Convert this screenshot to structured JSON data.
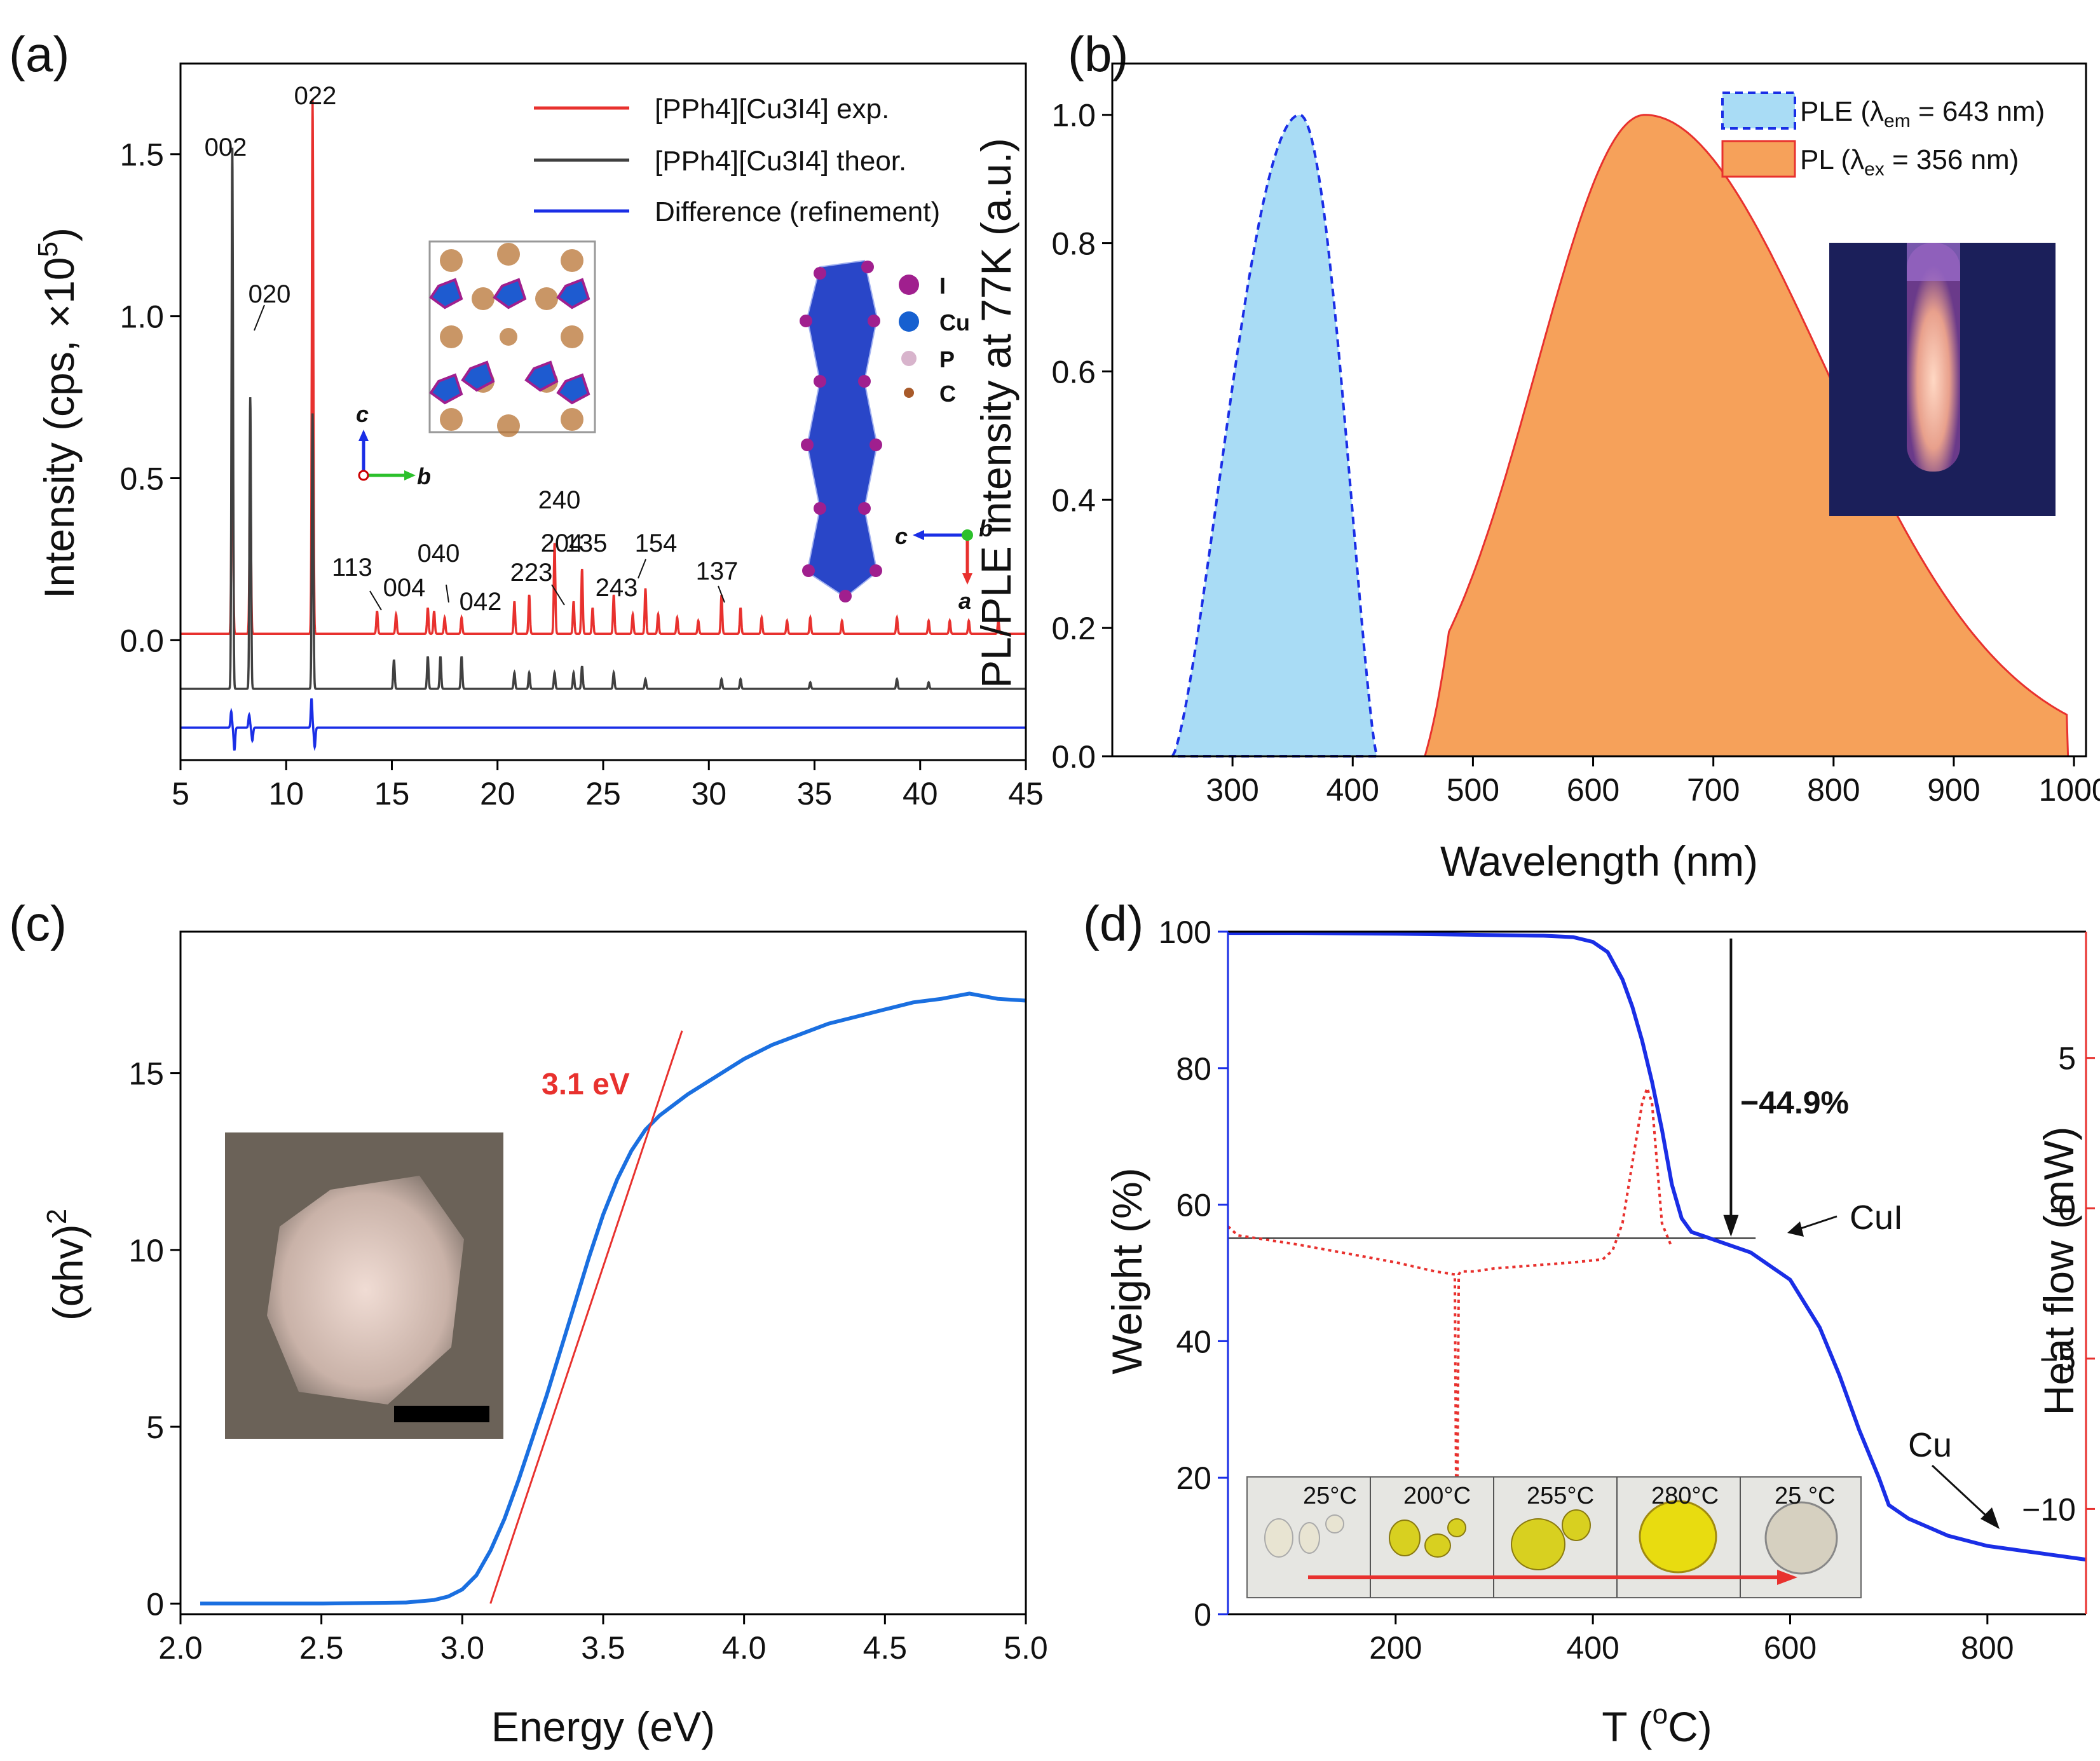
{
  "chart_data": [
    {
      "id": "a",
      "panel_label": "(a)",
      "type": "line",
      "xlabel": "",
      "ylabel": "Intensity (cps, ×10",
      "ylabel_sup": "5",
      "ylabel_tail": ")",
      "xlim": [
        5,
        45
      ],
      "ylim": [
        -0.37,
        1.78
      ],
      "xticks": [
        "5",
        "10",
        "15",
        "20",
        "25",
        "30",
        "35",
        "40",
        "45"
      ],
      "yticks": [
        "0.0",
        "0.5",
        "1.0",
        "1.5"
      ],
      "legend": [
        {
          "name": "[PPh4][Cu3I4] exp.",
          "color": "#e8312e"
        },
        {
          "name": "[PPh4][Cu3I4] theor.",
          "color": "#404040"
        },
        {
          "name": "Difference (refinement)",
          "color": "#1a2ee6"
        }
      ],
      "series": [
        {
          "name": "exp",
          "baseline": 0.02,
          "color": "#e8312e",
          "peaks": [
            [
              7.45,
              0.88
            ],
            [
              8.3,
              0.51
            ],
            [
              11.25,
              1.65
            ],
            [
              14.3,
              0.07
            ],
            [
              15.2,
              0.06
            ],
            [
              16.7,
              0.08
            ],
            [
              17.0,
              0.07
            ],
            [
              17.5,
              0.05
            ],
            [
              18.3,
              0.05
            ],
            [
              20.8,
              0.1
            ],
            [
              21.5,
              0.12
            ],
            [
              22.7,
              0.28
            ],
            [
              23.6,
              0.1
            ],
            [
              24.0,
              0.2
            ],
            [
              24.5,
              0.08
            ],
            [
              25.5,
              0.12
            ],
            [
              26.4,
              0.06
            ],
            [
              27.0,
              0.14
            ],
            [
              27.6,
              0.06
            ],
            [
              28.5,
              0.05
            ],
            [
              29.5,
              0.04
            ],
            [
              30.6,
              0.12
            ],
            [
              31.5,
              0.08
            ],
            [
              32.5,
              0.05
            ],
            [
              33.7,
              0.04
            ],
            [
              34.8,
              0.05
            ],
            [
              36.3,
              0.04
            ],
            [
              38.9,
              0.05
            ],
            [
              40.4,
              0.04
            ],
            [
              41.4,
              0.04
            ],
            [
              42.3,
              0.04
            ],
            [
              43.7,
              0.04
            ]
          ]
        },
        {
          "name": "theor",
          "baseline": -0.15,
          "color": "#404040",
          "peaks": [
            [
              7.45,
              1.67
            ],
            [
              8.3,
              0.9
            ],
            [
              11.25,
              0.85
            ],
            [
              15.1,
              0.09
            ],
            [
              16.7,
              0.1
            ],
            [
              17.3,
              0.1
            ],
            [
              18.3,
              0.1
            ],
            [
              20.8,
              0.05
            ],
            [
              21.5,
              0.05
            ],
            [
              22.7,
              0.05
            ],
            [
              23.6,
              0.05
            ],
            [
              24.0,
              0.07
            ],
            [
              25.5,
              0.05
            ],
            [
              27.0,
              0.03
            ],
            [
              30.6,
              0.03
            ],
            [
              31.5,
              0.03
            ],
            [
              34.8,
              0.02
            ],
            [
              38.9,
              0.03
            ],
            [
              40.4,
              0.02
            ]
          ]
        },
        {
          "name": "diff",
          "baseline": -0.27,
          "color": "#1a2ee6",
          "peaks": [
            [
              7.4,
              0.05
            ],
            [
              7.55,
              -0.07
            ],
            [
              8.25,
              0.04
            ],
            [
              8.4,
              -0.04
            ],
            [
              11.2,
              0.09
            ],
            [
              11.35,
              -0.06
            ]
          ]
        }
      ],
      "annotations": [
        "002",
        "020",
        "022",
        "113",
        "004",
        "040",
        "042",
        "223",
        "204",
        "240",
        "135",
        "243",
        "154",
        "137"
      ],
      "axis_labels_inset": {
        "c": "c",
        "b": "b",
        "a": "a",
        "c2": "c",
        "b2": "b"
      },
      "atom_legend": [
        {
          "label": "I",
          "color": "#a01f8e"
        },
        {
          "label": "Cu",
          "color": "#1660d0"
        },
        {
          "label": "P",
          "color": "#d8b4cc"
        },
        {
          "label": "C",
          "color": "#a85a2a"
        }
      ]
    },
    {
      "id": "b",
      "panel_label": "(b)",
      "type": "area",
      "xlabel": "Wavelength (nm)",
      "ylabel": "PL/PLE intensity at 77K (a.u.)",
      "xlim": [
        200,
        1010
      ],
      "ylim": [
        0,
        1.08
      ],
      "xticks": [
        "300",
        "400",
        "500",
        "600",
        "700",
        "800",
        "900",
        "1000"
      ],
      "yticks": [
        "0.0",
        "0.2",
        "0.4",
        "0.6",
        "0.8",
        "1.0"
      ],
      "legend": [
        {
          "name": "PLE (λ",
          "sub": "em",
          "tail": " = 643 nm)",
          "color": "#a9dcf5"
        },
        {
          "name": "PL (λ",
          "sub": "ex",
          "tail": " = 356 nm)",
          "color": "#f6a15a"
        }
      ],
      "series": [
        {
          "name": "PLE",
          "peak_x": 356,
          "start_x": 250,
          "end_x": 420,
          "max": 1.0
        },
        {
          "name": "PL",
          "peak_x": 643,
          "start_x": 460,
          "end_x": 995,
          "max": 1.0,
          "tail_end": 0.015
        }
      ]
    },
    {
      "id": "c",
      "panel_label": "(c)",
      "type": "line",
      "xlabel": "Energy (eV)",
      "ylabel": "(αhv)",
      "ylabel_sup": "2",
      "xlim": [
        2.0,
        5.0
      ],
      "ylim": [
        -0.3,
        19
      ],
      "xticks": [
        "2.0",
        "2.5",
        "3.0",
        "3.5",
        "4.0",
        "4.5",
        "5.0"
      ],
      "yticks": [
        "0",
        "5",
        "10",
        "15"
      ],
      "annotation": "3.1 eV",
      "series": [
        {
          "name": "absorption",
          "color": "#1a6fe0",
          "x": [
            2.07,
            2.5,
            2.8,
            2.9,
            2.95,
            3.0,
            3.05,
            3.1,
            3.15,
            3.2,
            3.25,
            3.3,
            3.35,
            3.4,
            3.45,
            3.5,
            3.55,
            3.6,
            3.65,
            3.7,
            3.75,
            3.8,
            3.9,
            4.0,
            4.1,
            4.2,
            4.3,
            4.4,
            4.5,
            4.6,
            4.7,
            4.8,
            4.9,
            5.0
          ],
          "y": [
            0,
            0,
            0.03,
            0.1,
            0.2,
            0.4,
            0.8,
            1.5,
            2.4,
            3.5,
            4.7,
            5.9,
            7.2,
            8.5,
            9.8,
            11.0,
            12.0,
            12.8,
            13.4,
            13.8,
            14.1,
            14.4,
            14.9,
            15.4,
            15.8,
            16.1,
            16.4,
            16.6,
            16.8,
            17.0,
            17.1,
            17.25,
            17.1,
            17.05
          ]
        },
        {
          "name": "tangent",
          "color": "#e8312e",
          "x": [
            3.1,
            3.78
          ],
          "y": [
            0,
            16.2
          ]
        }
      ]
    },
    {
      "id": "d",
      "panel_label": "(d)",
      "type": "line",
      "xlabel": "T (",
      "xlabel_sup": "o",
      "xlabel_tail": "C)",
      "ylabel": "Weight (%)",
      "ylabel_right": "Heat flow (mW)",
      "xlim": [
        30,
        900
      ],
      "ylim": [
        0,
        100
      ],
      "y2lim": [
        -13.5,
        9.2
      ],
      "xticks": [
        "200",
        "400",
        "600",
        "800"
      ],
      "yticks": [
        "0",
        "20",
        "40",
        "60",
        "80",
        "100"
      ],
      "y2ticks": [
        "−10",
        "−5",
        "0",
        "5"
      ],
      "annotations": {
        "loss": "−44.9%",
        "cui": "CuI",
        "cu": "Cu"
      },
      "series": [
        {
          "name": "weight",
          "color": "#1a2ee6",
          "x": [
            30,
            100,
            200,
            300,
            350,
            380,
            400,
            415,
            430,
            440,
            450,
            460,
            470,
            480,
            490,
            500,
            510,
            530,
            560,
            600,
            630,
            650,
            670,
            690,
            700,
            720,
            760,
            800,
            850,
            900
          ],
          "y": [
            99.8,
            99.8,
            99.7,
            99.5,
            99.4,
            99.2,
            98.5,
            97,
            93,
            89,
            84,
            78,
            71,
            63,
            58,
            56,
            55.5,
            54.5,
            53,
            49,
            42,
            35,
            27,
            20,
            16,
            14,
            11.5,
            10,
            9,
            8
          ]
        },
        {
          "name": "heat_flow",
          "color": "#e8312e",
          "dashed": true,
          "x": [
            30,
            40,
            100,
            150,
            200,
            240,
            260,
            262,
            264,
            266,
            280,
            300,
            340,
            380,
            410,
            420,
            430,
            440,
            450,
            455,
            460,
            465,
            470,
            480
          ],
          "y": [
            -0.6,
            -0.9,
            -1.2,
            -1.5,
            -1.8,
            -2.1,
            -2.2,
            -12.5,
            -2.2,
            -2.1,
            -2.1,
            -2.0,
            -1.9,
            -1.8,
            -1.7,
            -1.4,
            -0.5,
            1.5,
            3.5,
            4.0,
            3.5,
            1.5,
            -0.5,
            -1.3
          ]
        }
      ],
      "inset_temps": [
        "25°C",
        "200°C",
        "255°C",
        "280°C",
        "25 °C"
      ]
    }
  ]
}
